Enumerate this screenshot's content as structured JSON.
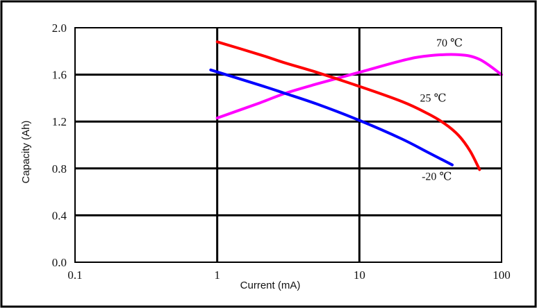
{
  "chart_data": {
    "type": "line",
    "xlabel": "Current (mA)",
    "ylabel": "Capacity (Ah)",
    "xscale": "log",
    "xlim": [
      0.1,
      100
    ],
    "ylim": [
      0.0,
      2.0
    ],
    "x_ticks": [
      {
        "value": 0.1,
        "label": "0.1"
      },
      {
        "value": 1,
        "label": "1"
      },
      {
        "value": 10,
        "label": "10"
      },
      {
        "value": 100,
        "label": "100"
      }
    ],
    "y_ticks": [
      {
        "value": 0.0,
        "label": "0.0"
      },
      {
        "value": 0.4,
        "label": "0.4"
      },
      {
        "value": 0.8,
        "label": "0.8"
      },
      {
        "value": 1.2,
        "label": "1.2"
      },
      {
        "value": 1.6,
        "label": "1.6"
      },
      {
        "value": 2.0,
        "label": "2.0"
      }
    ],
    "grid": true,
    "legend": "none",
    "series": [
      {
        "name": "70 ℃",
        "color": "#ff00ff",
        "points": [
          [
            1,
            1.23
          ],
          [
            2,
            1.36
          ],
          [
            3,
            1.44
          ],
          [
            5,
            1.52
          ],
          [
            10,
            1.62
          ],
          [
            20,
            1.72
          ],
          [
            30,
            1.76
          ],
          [
            50,
            1.77
          ],
          [
            70,
            1.73
          ],
          [
            100,
            1.6
          ]
        ]
      },
      {
        "name": "25 ℃",
        "color": "#ff0000",
        "points": [
          [
            1,
            1.88
          ],
          [
            2,
            1.77
          ],
          [
            3,
            1.7
          ],
          [
            5,
            1.62
          ],
          [
            10,
            1.5
          ],
          [
            20,
            1.37
          ],
          [
            30,
            1.27
          ],
          [
            40,
            1.18
          ],
          [
            50,
            1.08
          ],
          [
            60,
            0.95
          ],
          [
            70,
            0.79
          ]
        ]
      },
      {
        "name": "-20 ℃",
        "color": "#0000ff",
        "points": [
          [
            0.9,
            1.64
          ],
          [
            2,
            1.51
          ],
          [
            3,
            1.44
          ],
          [
            5,
            1.35
          ],
          [
            10,
            1.21
          ],
          [
            20,
            1.05
          ],
          [
            30,
            0.94
          ],
          [
            45,
            0.83
          ]
        ]
      }
    ]
  }
}
